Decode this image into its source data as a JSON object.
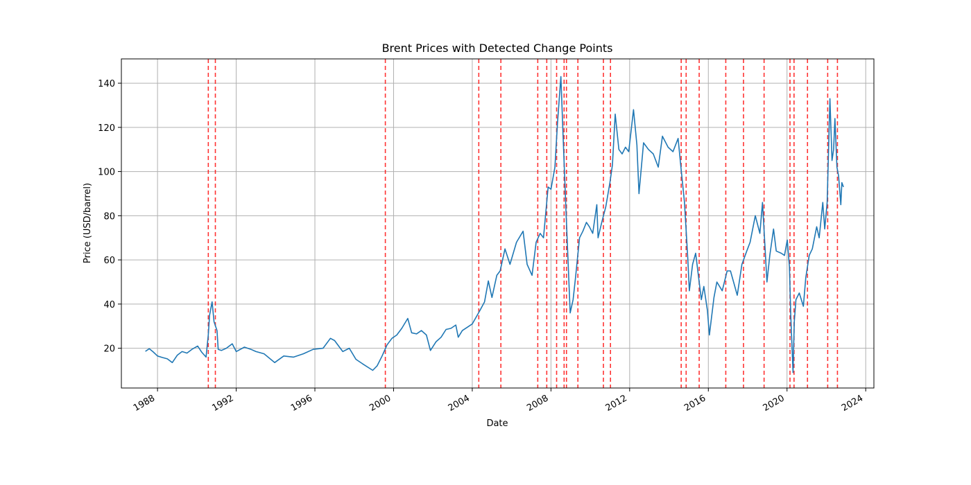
{
  "chart_data": {
    "type": "line",
    "title": "Brent Prices with Detected Change Points",
    "xlabel": "Date",
    "ylabel": "Price (USD/barrel)",
    "xlim": [
      "1986-03-01",
      "2024-06-01"
    ],
    "ylim": [
      2,
      151
    ],
    "x_ticks": [
      "1988",
      "1992",
      "1996",
      "2000",
      "2004",
      "2008",
      "2012",
      "2016",
      "2020",
      "2024"
    ],
    "y_ticks": [
      20,
      40,
      60,
      80,
      100,
      120,
      140
    ],
    "grid": true,
    "colors": {
      "series": "#1f77b4",
      "change_points": "#ff0000",
      "grid": "#b0b0b0"
    },
    "series": [
      {
        "x": [
          "1987-05-20",
          "1987-08-01",
          "1987-10-15",
          "1988-01-01",
          "1988-04-01",
          "1988-07-01",
          "1988-10-01",
          "1989-01-01",
          "1989-04-01",
          "1989-07-01",
          "1989-10-01",
          "1990-01-15",
          "1990-04-01",
          "1990-06-20",
          "1990-08-01",
          "1990-08-25",
          "1990-10-10",
          "1990-11-15",
          "1991-01-10",
          "1991-02-01",
          "1991-04-01",
          "1991-07-01",
          "1991-10-20",
          "1992-01-01",
          "1992-06-01",
          "1992-10-01",
          "1993-01-01",
          "1993-06-01",
          "1993-12-15",
          "1994-06-01",
          "1994-12-01",
          "1995-06-01",
          "1995-12-01",
          "1996-06-01",
          "1996-10-15",
          "1997-01-01",
          "1997-06-01",
          "1997-10-01",
          "1998-02-01",
          "1998-06-01",
          "1998-12-10",
          "1999-03-01",
          "1999-06-01",
          "1999-09-01",
          "1999-12-01",
          "2000-03-01",
          "2000-06-01",
          "2000-09-20",
          "2000-12-01",
          "2001-03-01",
          "2001-06-01",
          "2001-09-01",
          "2001-11-15",
          "2002-03-01",
          "2002-06-01",
          "2002-09-01",
          "2002-12-01",
          "2003-03-01",
          "2003-04-15",
          "2003-07-01",
          "2003-10-01",
          "2004-01-01",
          "2004-05-20",
          "2004-08-15",
          "2004-10-25",
          "2005-01-01",
          "2005-04-01",
          "2005-06-01",
          "2005-08-30",
          "2005-12-01",
          "2006-04-01",
          "2006-08-01",
          "2006-10-15",
          "2007-01-15",
          "2007-04-01",
          "2007-06-15",
          "2007-08-15",
          "2007-11-10",
          "2008-01-01",
          "2008-03-15",
          "2008-05-01",
          "2008-07-03",
          "2008-08-15",
          "2008-10-01",
          "2008-12-23",
          "2009-02-15",
          "2009-04-01",
          "2009-06-15",
          "2009-08-15",
          "2009-10-20",
          "2009-12-15",
          "2010-02-15",
          "2010-05-01",
          "2010-05-25",
          "2010-08-01",
          "2010-10-15",
          "2010-12-31",
          "2011-02-15",
          "2011-04-08",
          "2011-06-15",
          "2011-08-15",
          "2011-10-15",
          "2011-12-15",
          "2012-03-13",
          "2012-05-15",
          "2012-06-22",
          "2012-09-15",
          "2012-12-15",
          "2013-03-15",
          "2013-06-15",
          "2013-09-01",
          "2013-12-15",
          "2014-03-15",
          "2014-06-19",
          "2014-08-01",
          "2014-10-15",
          "2014-12-15",
          "2015-01-13",
          "2015-03-15",
          "2015-05-10",
          "2015-08-24",
          "2015-10-10",
          "2015-12-15",
          "2016-01-20",
          "2016-04-15",
          "2016-06-08",
          "2016-09-15",
          "2016-12-15",
          "2017-02-15",
          "2017-06-21",
          "2017-09-15",
          "2017-12-15",
          "2018-02-15",
          "2018-05-22",
          "2018-08-15",
          "2018-10-03",
          "2018-12-24",
          "2019-02-15",
          "2019-04-25",
          "2019-06-15",
          "2019-09-16",
          "2019-11-15",
          "2020-01-06",
          "2020-02-15",
          "2020-03-10",
          "2020-04-21",
          "2020-05-15",
          "2020-06-15",
          "2020-08-15",
          "2020-10-30",
          "2020-12-15",
          "2021-02-15",
          "2021-04-15",
          "2021-07-05",
          "2021-08-20",
          "2021-10-26",
          "2021-12-01",
          "2022-01-15",
          "2022-03-08",
          "2022-04-15",
          "2022-05-15",
          "2022-06-08",
          "2022-07-15",
          "2022-08-15",
          "2022-09-26",
          "2022-10-15",
          "2022-11-14"
        ],
        "values": [
          18.6,
          19.8,
          18.3,
          16.5,
          15.8,
          15.2,
          13.5,
          16.8,
          18.5,
          17.8,
          19.5,
          21.0,
          18.2,
          16.0,
          26.0,
          35.0,
          41.0,
          32.0,
          28.0,
          19.5,
          19.0,
          20.0,
          22.0,
          18.5,
          20.5,
          19.5,
          18.5,
          17.5,
          13.5,
          16.5,
          16.0,
          17.5,
          19.5,
          20.0,
          24.5,
          23.5,
          18.5,
          20.0,
          15.0,
          13.0,
          10.0,
          12.0,
          16.5,
          21.5,
          24.5,
          26.0,
          29.0,
          33.5,
          27.0,
          26.5,
          28.0,
          26.0,
          19.0,
          23.0,
          25.0,
          28.5,
          29.0,
          30.5,
          25.0,
          28.0,
          29.5,
          31.0,
          37.0,
          41.0,
          50.5,
          43.0,
          53.0,
          55.0,
          65.0,
          58.0,
          68.0,
          73.0,
          58.0,
          53.0,
          68.0,
          72.0,
          70.0,
          93.0,
          92.0,
          102.0,
          122.0,
          143.0,
          115.0,
          85.0,
          36.0,
          42.0,
          52.0,
          70.0,
          73.0,
          77.0,
          75.0,
          72.0,
          85.0,
          70.0,
          77.0,
          84.0,
          95.0,
          103.0,
          126.0,
          110.0,
          108.0,
          111.0,
          109.0,
          128.0,
          112.0,
          90.0,
          113.0,
          110.0,
          108.0,
          102.0,
          116.0,
          111.0,
          109.0,
          115.0,
          104.0,
          86.0,
          61.0,
          46.0,
          58.0,
          63.0,
          42.0,
          48.0,
          37.0,
          26.0,
          43.0,
          50.0,
          46.0,
          55.0,
          55.0,
          44.0,
          58.0,
          64.0,
          68.0,
          80.0,
          72.0,
          86.0,
          50.0,
          62.0,
          74.0,
          64.0,
          63.0,
          62.0,
          69.0,
          57.0,
          35.0,
          9.0,
          32.0,
          42.0,
          45.0,
          39.0,
          52.0,
          62.0,
          65.0,
          75.0,
          70.0,
          86.0,
          74.0,
          86.0,
          133.0,
          105.0,
          110.0,
          124.0,
          102.0,
          98.0,
          85.0,
          95.0,
          93.0
        ]
      }
    ],
    "change_points": [
      "1990-08-01",
      "1990-12-10",
      "1999-08-01",
      "2004-05-01",
      "2005-06-15",
      "2007-05-01",
      "2007-10-15",
      "2008-04-15",
      "2008-09-01",
      "2008-10-15",
      "2009-05-15",
      "2010-09-01",
      "2011-01-10",
      "2014-08-15",
      "2014-11-15",
      "2015-07-15",
      "2016-11-20",
      "2017-10-15",
      "2018-11-01",
      "2020-02-25",
      "2020-05-10",
      "2021-01-15",
      "2022-01-25",
      "2022-07-25"
    ]
  }
}
